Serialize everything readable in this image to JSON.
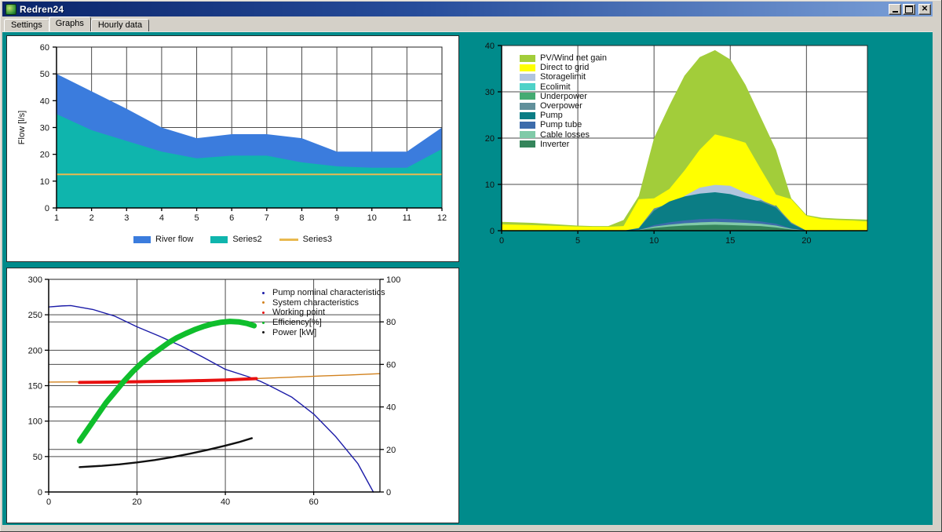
{
  "window": {
    "title": "Redren24"
  },
  "window_controls": {
    "minimize": "minimize",
    "maximize": "maximize",
    "close": "close"
  },
  "tabs": [
    {
      "label": "Settings",
      "active": false
    },
    {
      "label": "Graphs",
      "active": true
    },
    {
      "label": "Hourly data",
      "active": false
    }
  ],
  "colors": {
    "background": "#008b8b",
    "chrome": "#d4d0c8",
    "titlebar_start": "#0a246a",
    "titlebar_end": "#7ba0d8",
    "grid": "#4b4b4b",
    "plot_border": "#222222"
  },
  "chart_data": [
    {
      "id": "flow",
      "type": "area",
      "title": "",
      "xlabel": "",
      "ylabel": "Flow [l/s]",
      "xlim": [
        1,
        12
      ],
      "ylim": [
        0,
        60
      ],
      "xticks": [
        1,
        2,
        3,
        4,
        5,
        6,
        7,
        8,
        9,
        10,
        11,
        12
      ],
      "yticks": [
        0,
        10,
        20,
        30,
        40,
        50,
        60
      ],
      "x": [
        1,
        2,
        3,
        4,
        5,
        6,
        7,
        8,
        9,
        10,
        11,
        12
      ],
      "legend_position": "bottom",
      "series": [
        {
          "name": "River flow",
          "kind": "area",
          "color": "#3b7cdd",
          "values": [
            50,
            43.5,
            37,
            30,
            26,
            27.5,
            27.5,
            26,
            21,
            21,
            21,
            30
          ]
        },
        {
          "name": "Series2",
          "kind": "area",
          "color": "#0fb5ad",
          "values": [
            35,
            29,
            25,
            21,
            18.5,
            19.5,
            19.5,
            17,
            15.5,
            15,
            15,
            22
          ]
        },
        {
          "name": "Series3",
          "kind": "line",
          "color": "#e9b94f",
          "width": 2,
          "values": [
            12.5,
            12.5,
            12.5,
            12.5,
            12.5,
            12.5,
            12.5,
            12.5,
            12.5,
            12.5,
            12.5,
            12.5
          ]
        }
      ]
    },
    {
      "id": "energy",
      "type": "area",
      "title": "",
      "xlabel": "",
      "ylabel": "",
      "xlim": [
        0,
        24
      ],
      "ylim": [
        0,
        40
      ],
      "xticks": [
        0,
        5,
        10,
        15,
        20
      ],
      "yticks": [
        0,
        10,
        20,
        30,
        40
      ],
      "x": [
        0,
        1,
        2,
        3,
        4,
        5,
        6,
        7,
        8,
        9,
        10,
        11,
        12,
        13,
        14,
        15,
        16,
        17,
        18,
        19,
        20,
        21,
        22,
        23,
        24
      ],
      "legend_position": "top-left",
      "series": [
        {
          "name": "PV/Wind net gain",
          "kind": "area",
          "color": "#a2cd3a",
          "values": [
            1.9,
            1.8,
            1.7,
            1.5,
            1.3,
            1.1,
            1.0,
            1.0,
            2.3,
            7.5,
            20,
            27,
            33.5,
            37.5,
            39,
            37,
            31.5,
            24.5,
            17.5,
            7.0,
            3.4,
            2.8,
            2.6,
            2.5,
            2.4
          ]
        },
        {
          "name": "Direct to grid",
          "kind": "area",
          "color": "#ffff00",
          "values": [
            1.35,
            1.3,
            1.2,
            1.1,
            1.0,
            0.9,
            0.85,
            0.85,
            1.0,
            6.8,
            7.0,
            9.0,
            13,
            17.5,
            20.8,
            20,
            19,
            13.3,
            7.8,
            6.8,
            3.2,
            2.5,
            2.3,
            2.2,
            2.0
          ]
        },
        {
          "name": "Storagelimit",
          "kind": "area",
          "color": "#b0c4de",
          "values": [
            0,
            0,
            0,
            0,
            0,
            0,
            0,
            0,
            0,
            0,
            0,
            4,
            7.5,
            9.3,
            9.9,
            9.7,
            8.2,
            6.9,
            4.5,
            0,
            0,
            0,
            0,
            0,
            0
          ]
        },
        {
          "name": "Ecolimit",
          "kind": "area",
          "color": "#4ed2c8",
          "values": [
            0,
            0,
            0,
            0,
            0,
            0,
            0,
            0,
            0,
            0.3,
            2,
            3,
            3.5,
            3.7,
            3.8,
            3.6,
            3.3,
            3,
            2.5,
            1,
            0,
            0,
            0,
            0,
            0
          ]
        },
        {
          "name": "Underpower",
          "kind": "area",
          "color": "#44ab72",
          "values": [
            0,
            0,
            0,
            0,
            0,
            0,
            0,
            0,
            0,
            0.4,
            1.1,
            1.6,
            2.0,
            2.2,
            2.2,
            2.1,
            2.0,
            3.5,
            5.5,
            1.5,
            0,
            0,
            0,
            0,
            0
          ]
        },
        {
          "name": "Overpower",
          "kind": "area",
          "color": "#61909b",
          "values": [
            0,
            0,
            0,
            0,
            0,
            0,
            0,
            0,
            0,
            0.6,
            4.8,
            5.8,
            6.2,
            6.4,
            6.5,
            6.3,
            6.0,
            6.6,
            5.3,
            1.8,
            0,
            0,
            0,
            0,
            0
          ]
        },
        {
          "name": "Pump",
          "kind": "area",
          "color": "#0b7d85",
          "values": [
            0,
            0,
            0,
            0,
            0,
            0,
            0,
            0,
            0,
            0.5,
            4.3,
            6.3,
            7.4,
            8.0,
            8.3,
            7.9,
            7.0,
            6.3,
            5.0,
            1.5,
            0,
            0,
            0,
            0,
            0
          ]
        },
        {
          "name": "Pump tube",
          "kind": "area",
          "color": "#3d6cab",
          "values": [
            0,
            0,
            0,
            0,
            0,
            0,
            0,
            0,
            0,
            0.2,
            1.2,
            1.8,
            2.2,
            2.5,
            2.6,
            2.5,
            2.3,
            2.0,
            1.5,
            0.5,
            0,
            0,
            0,
            0,
            0
          ]
        },
        {
          "name": "Cable losses",
          "kind": "area",
          "color": "#80caa8",
          "values": [
            0,
            0,
            0,
            0,
            0,
            0,
            0,
            0,
            0,
            0.15,
            0.9,
            1.3,
            1.6,
            1.8,
            1.9,
            1.8,
            1.7,
            1.5,
            1.1,
            0.4,
            0,
            0,
            0,
            0,
            0
          ]
        },
        {
          "name": "Inverter",
          "kind": "area",
          "color": "#35855b",
          "values": [
            0,
            0,
            0,
            0,
            0,
            0,
            0,
            0,
            0,
            0.1,
            0.6,
            0.9,
            1.1,
            1.2,
            1.3,
            1.2,
            1.1,
            1.0,
            0.7,
            0.25,
            0,
            0,
            0,
            0,
            0
          ]
        }
      ]
    },
    {
      "id": "pump",
      "type": "line",
      "title": "",
      "xlabel": "",
      "ylabel": "",
      "xlim": [
        0,
        75
      ],
      "ylim_left": [
        0,
        300
      ],
      "ylim_right": [
        0,
        100
      ],
      "xticks": [
        0,
        20,
        40,
        60
      ],
      "yticks_left": [
        0,
        50,
        100,
        150,
        200,
        250,
        300
      ],
      "yticks_right": [
        0,
        20,
        40,
        60,
        80,
        100
      ],
      "grid_x": [
        20,
        40,
        60
      ],
      "grid_left": [
        50,
        100,
        150,
        200,
        250
      ],
      "grid_right": [
        20,
        40,
        60,
        80
      ],
      "legend_position": "top-right",
      "series": [
        {
          "name": "Pump nominal characteristics",
          "axis": "left",
          "color": "#1c1ca8",
          "width": 1.4,
          "points": [
            [
              0,
              261
            ],
            [
              3,
              262.5
            ],
            [
              5,
              263
            ],
            [
              10,
              257.5
            ],
            [
              15,
              248
            ],
            [
              20,
              233
            ],
            [
              25,
              220
            ],
            [
              30,
              206
            ],
            [
              35,
              190
            ],
            [
              40,
              173
            ],
            [
              45,
              163
            ],
            [
              48,
              156
            ],
            [
              50,
              150
            ],
            [
              55,
              134
            ],
            [
              60,
              110
            ],
            [
              65,
              78
            ],
            [
              70,
              40
            ],
            [
              73.5,
              0
            ]
          ]
        },
        {
          "name": "System characteristics",
          "axis": "left",
          "color": "#d2821e",
          "width": 1.4,
          "points": [
            [
              0,
              155
            ],
            [
              10,
              155.5
            ],
            [
              20,
              156
            ],
            [
              30,
              157.2
            ],
            [
              40,
              158.8
            ],
            [
              47,
              160
            ],
            [
              55,
              162
            ],
            [
              62,
              163.8
            ],
            [
              68,
              165
            ],
            [
              75,
              167
            ]
          ]
        },
        {
          "name": "Working point",
          "axis": "left",
          "color": "#e81010",
          "width": 4,
          "points": [
            [
              7,
              154.5
            ],
            [
              20,
              155.5
            ],
            [
              30,
              156.5
            ],
            [
              40,
              158
            ],
            [
              47,
              160
            ]
          ]
        },
        {
          "name": "Efficiency[%]",
          "axis": "right",
          "color": "#0fbe2c",
          "width": 7,
          "points": [
            [
              7,
              24
            ],
            [
              9,
              30
            ],
            [
              11,
              36
            ],
            [
              13,
              42
            ],
            [
              15,
              47
            ],
            [
              17,
              52
            ],
            [
              19,
              56.5
            ],
            [
              21,
              60.5
            ],
            [
              23,
              64
            ],
            [
              25,
              67
            ],
            [
              27,
              70
            ],
            [
              29,
              72.5
            ],
            [
              31,
              74.5
            ],
            [
              33,
              76.3
            ],
            [
              35,
              77.8
            ],
            [
              37,
              79
            ],
            [
              39,
              79.8
            ],
            [
              41,
              80.2
            ],
            [
              43,
              80
            ],
            [
              45,
              79.2
            ],
            [
              46.5,
              78.2
            ]
          ]
        },
        {
          "name": "Power [kW]",
          "axis": "right",
          "color": "#111111",
          "width": 2.4,
          "points": [
            [
              7,
              11.7
            ],
            [
              12,
              12.3
            ],
            [
              16,
              13
            ],
            [
              20,
              13.9
            ],
            [
              24,
              15
            ],
            [
              28,
              16.4
            ],
            [
              32,
              18
            ],
            [
              36,
              19.8
            ],
            [
              40,
              21.8
            ],
            [
              43,
              23.4
            ],
            [
              46,
              25.3
            ]
          ]
        }
      ]
    }
  ]
}
